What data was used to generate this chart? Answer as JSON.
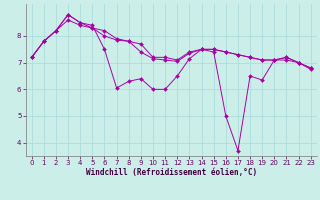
{
  "xlabel": "Windchill (Refroidissement éolien,°C)",
  "background_color": "#cceee8",
  "grid_color": "#aadddd",
  "line_color": "#aa00aa",
  "xlim": [
    -0.5,
    23.5
  ],
  "ylim": [
    3.5,
    9.2
  ],
  "yticks": [
    4,
    5,
    6,
    7,
    8
  ],
  "xticks": [
    0,
    1,
    2,
    3,
    4,
    5,
    6,
    7,
    8,
    9,
    10,
    11,
    12,
    13,
    14,
    15,
    16,
    17,
    18,
    19,
    20,
    21,
    22,
    23
  ],
  "series": [
    [
      7.2,
      7.8,
      8.2,
      8.8,
      8.5,
      8.3,
      8.2,
      7.9,
      7.8,
      7.7,
      7.2,
      7.2,
      7.1,
      7.4,
      7.5,
      7.5,
      7.4,
      7.3,
      7.2,
      7.1,
      7.1,
      7.2,
      7.0,
      6.8
    ],
    [
      7.2,
      7.8,
      8.2,
      8.8,
      8.5,
      8.4,
      7.5,
      6.05,
      6.3,
      6.4,
      6.0,
      6.0,
      6.5,
      7.15,
      7.5,
      7.4,
      5.0,
      3.7,
      6.5,
      6.35,
      7.1,
      7.1,
      7.0,
      6.75
    ],
    [
      7.2,
      7.8,
      8.2,
      8.6,
      8.4,
      8.3,
      8.0,
      7.85,
      7.8,
      7.4,
      7.15,
      7.1,
      7.05,
      7.35,
      7.5,
      7.5,
      7.4,
      7.3,
      7.2,
      7.1,
      7.1,
      7.2,
      7.0,
      6.8
    ]
  ]
}
